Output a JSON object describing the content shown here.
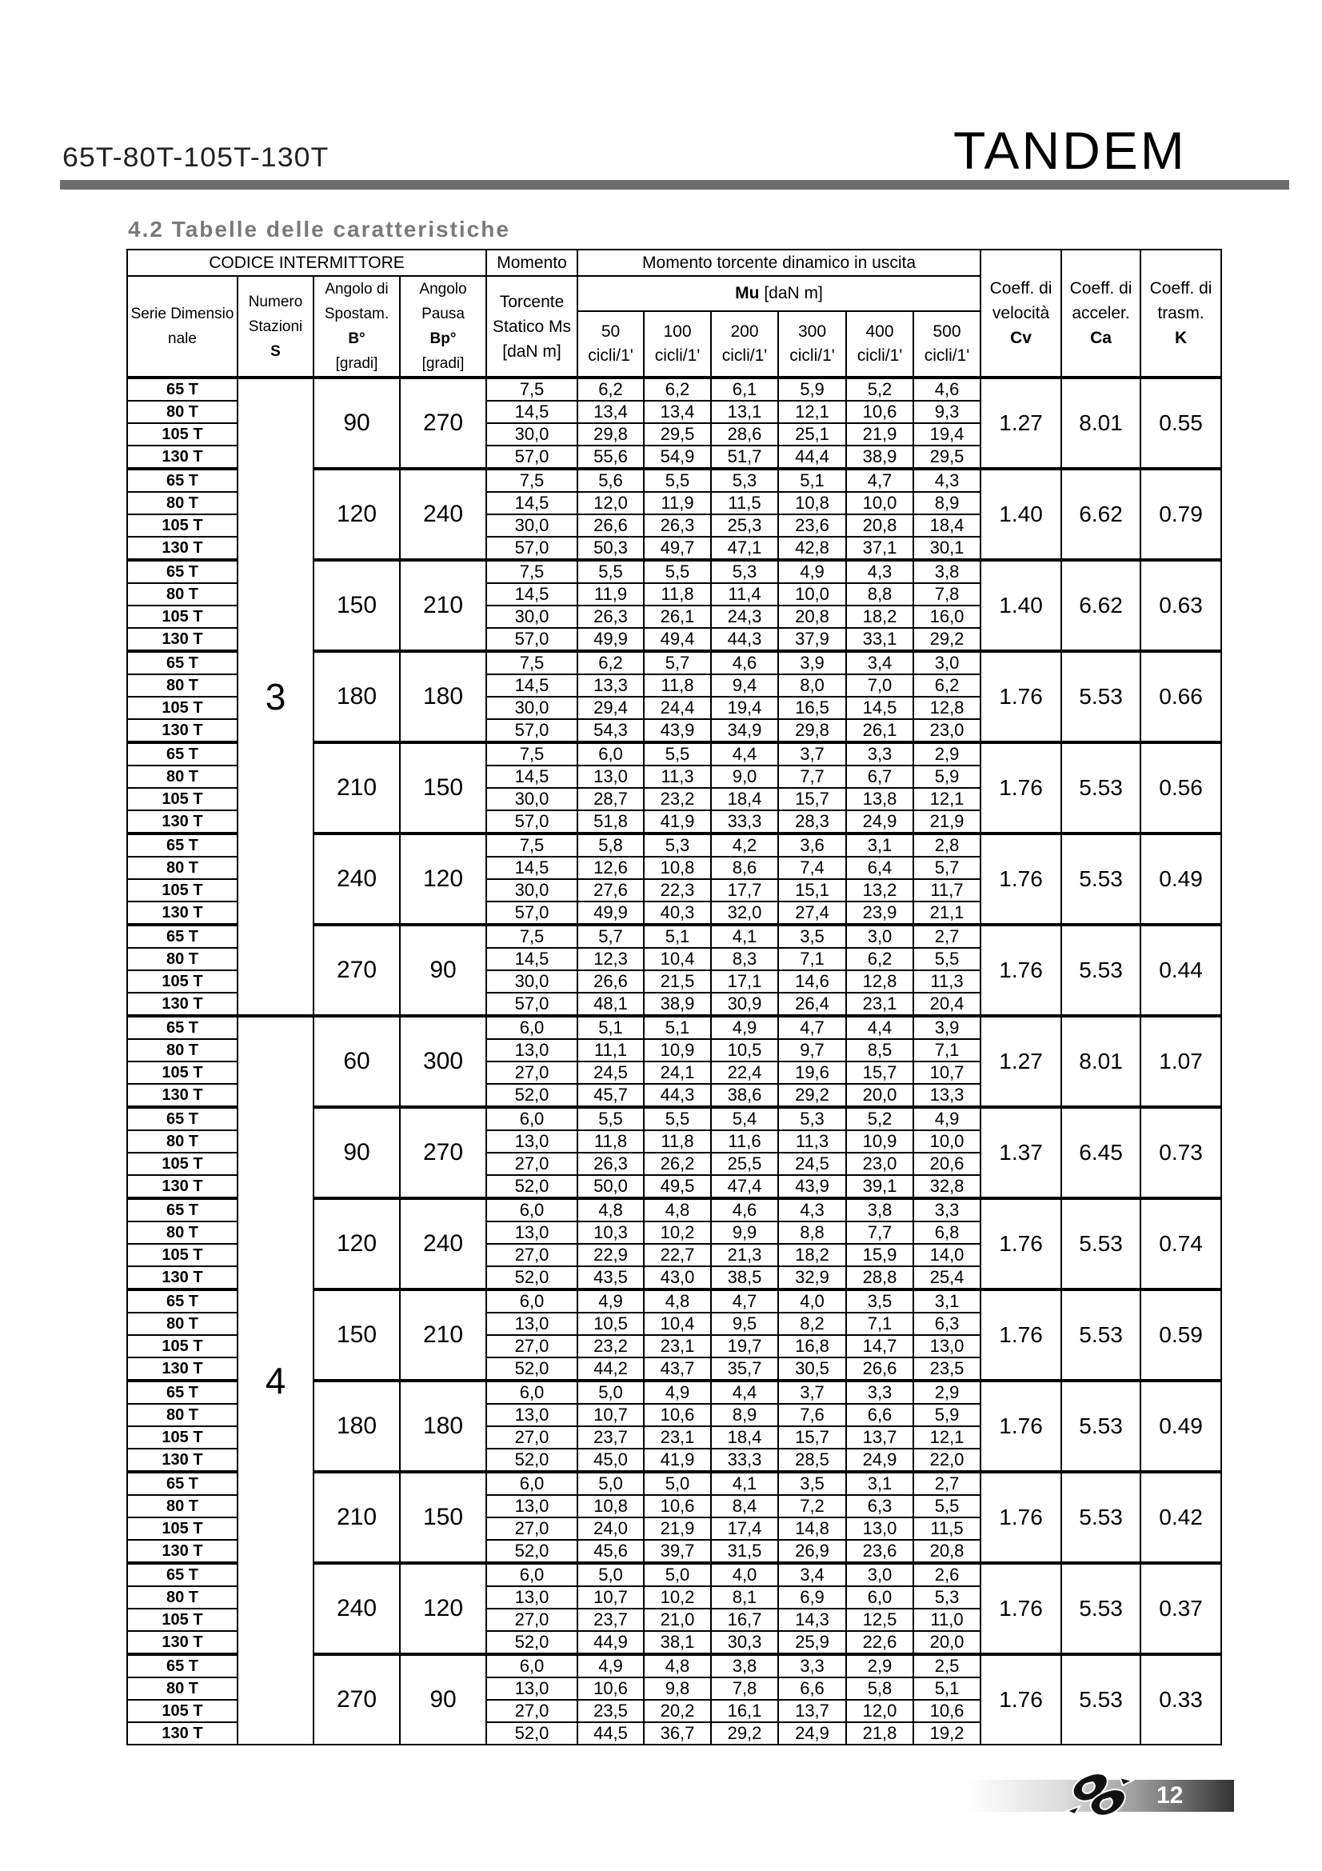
{
  "header": {
    "model": "65T-80T-105T-130T",
    "brand": "TANDEM"
  },
  "section_title": "4.2 Tabelle delle caratteristiche",
  "table": {
    "headers": {
      "codice": "CODICE INTERMITTORE",
      "serie": "Serie Dimensio nale",
      "numero": "Numero Stazioni",
      "numero_sym": "S",
      "angolo_sp": "Angolo di Spostam.",
      "angolo_sp_sym": "B°",
      "angolo_pa": "Angolo Pausa",
      "angolo_pa_sym": "Bp°",
      "unit_gradi": "[gradi]",
      "momento": "Momento",
      "momento2": "Torcente Statico Ms",
      "momento_unit": "[daN m]",
      "dinamico": "Momento torcente dinamico in uscita",
      "mu_sym": "Mu",
      "mu_unit": "[daN m]",
      "cicli": [
        "50",
        "100",
        "200",
        "300",
        "400",
        "500"
      ],
      "cicli_unit": "cicli/1'",
      "cv": "Coeff. di velocità",
      "cv_sym": "Cv",
      "ca": "Coeff. di acceler.",
      "ca_sym": "Ca",
      "k": "Coeff. di trasm.",
      "k_sym": "K"
    },
    "series": [
      "65 T",
      "80 T",
      "105 T",
      "130 T"
    ],
    "stations": [
      {
        "s": "3",
        "ms": [
          "7,5",
          "14,5",
          "30,0",
          "57,0"
        ],
        "groups": [
          {
            "b": "90",
            "bp": "270",
            "cv": "1.27",
            "ca": "8.01",
            "k": "0.55",
            "mu": [
              [
                "6,2",
                "6,2",
                "6,1",
                "5,9",
                "5,2",
                "4,6"
              ],
              [
                "13,4",
                "13,4",
                "13,1",
                "12,1",
                "10,6",
                "9,3"
              ],
              [
                "29,8",
                "29,5",
                "28,6",
                "25,1",
                "21,9",
                "19,4"
              ],
              [
                "55,6",
                "54,9",
                "51,7",
                "44,4",
                "38,9",
                "29,5"
              ]
            ]
          },
          {
            "b": "120",
            "bp": "240",
            "cv": "1.40",
            "ca": "6.62",
            "k": "0.79",
            "mu": [
              [
                "5,6",
                "5,5",
                "5,3",
                "5,1",
                "4,7",
                "4,3"
              ],
              [
                "12,0",
                "11,9",
                "11,5",
                "10,8",
                "10,0",
                "8,9"
              ],
              [
                "26,6",
                "26,3",
                "25,3",
                "23,6",
                "20,8",
                "18,4"
              ],
              [
                "50,3",
                "49,7",
                "47,1",
                "42,8",
                "37,1",
                "30,1"
              ]
            ]
          },
          {
            "b": "150",
            "bp": "210",
            "cv": "1.40",
            "ca": "6.62",
            "k": "0.63",
            "mu": [
              [
                "5,5",
                "5,5",
                "5,3",
                "4,9",
                "4,3",
                "3,8"
              ],
              [
                "11,9",
                "11,8",
                "11,4",
                "10,0",
                "8,8",
                "7,8"
              ],
              [
                "26,3",
                "26,1",
                "24,3",
                "20,8",
                "18,2",
                "16,0"
              ],
              [
                "49,9",
                "49,4",
                "44,3",
                "37,9",
                "33,1",
                "29,2"
              ]
            ]
          },
          {
            "b": "180",
            "bp": "180",
            "cv": "1.76",
            "ca": "5.53",
            "k": "0.66",
            "mu": [
              [
                "6,2",
                "5,7",
                "4,6",
                "3,9",
                "3,4",
                "3,0"
              ],
              [
                "13,3",
                "11,8",
                "9,4",
                "8,0",
                "7,0",
                "6,2"
              ],
              [
                "29,4",
                "24,4",
                "19,4",
                "16,5",
                "14,5",
                "12,8"
              ],
              [
                "54,3",
                "43,9",
                "34,9",
                "29,8",
                "26,1",
                "23,0"
              ]
            ]
          },
          {
            "b": "210",
            "bp": "150",
            "cv": "1.76",
            "ca": "5.53",
            "k": "0.56",
            "mu": [
              [
                "6,0",
                "5,5",
                "4,4",
                "3,7",
                "3,3",
                "2,9"
              ],
              [
                "13,0",
                "11,3",
                "9,0",
                "7,7",
                "6,7",
                "5,9"
              ],
              [
                "28,7",
                "23,2",
                "18,4",
                "15,7",
                "13,8",
                "12,1"
              ],
              [
                "51,8",
                "41,9",
                "33,3",
                "28,3",
                "24,9",
                "21,9"
              ]
            ]
          },
          {
            "b": "240",
            "bp": "120",
            "cv": "1.76",
            "ca": "5.53",
            "k": "0.49",
            "mu": [
              [
                "5,8",
                "5,3",
                "4,2",
                "3,6",
                "3,1",
                "2,8"
              ],
              [
                "12,6",
                "10,8",
                "8,6",
                "7,4",
                "6,4",
                "5,7"
              ],
              [
                "27,6",
                "22,3",
                "17,7",
                "15,1",
                "13,2",
                "11,7"
              ],
              [
                "49,9",
                "40,3",
                "32,0",
                "27,4",
                "23,9",
                "21,1"
              ]
            ]
          },
          {
            "b": "270",
            "bp": "90",
            "cv": "1.76",
            "ca": "5.53",
            "k": "0.44",
            "mu": [
              [
                "5,7",
                "5,1",
                "4,1",
                "3,5",
                "3,0",
                "2,7"
              ],
              [
                "12,3",
                "10,4",
                "8,3",
                "7,1",
                "6,2",
                "5,5"
              ],
              [
                "26,6",
                "21,5",
                "17,1",
                "14,6",
                "12,8",
                "11,3"
              ],
              [
                "48,1",
                "38,9",
                "30,9",
                "26,4",
                "23,1",
                "20,4"
              ]
            ]
          }
        ]
      },
      {
        "s": "4",
        "ms": [
          "6,0",
          "13,0",
          "27,0",
          "52,0"
        ],
        "groups": [
          {
            "b": "60",
            "bp": "300",
            "cv": "1.27",
            "ca": "8.01",
            "k": "1.07",
            "mu": [
              [
                "5,1",
                "5,1",
                "4,9",
                "4,7",
                "4,4",
                "3,9"
              ],
              [
                "11,1",
                "10,9",
                "10,5",
                "9,7",
                "8,5",
                "7,1"
              ],
              [
                "24,5",
                "24,1",
                "22,4",
                "19,6",
                "15,7",
                "10,7"
              ],
              [
                "45,7",
                "44,3",
                "38,6",
                "29,2",
                "20,0",
                "13,3"
              ]
            ]
          },
          {
            "b": "90",
            "bp": "270",
            "cv": "1.37",
            "ca": "6.45",
            "k": "0.73",
            "mu": [
              [
                "5,5",
                "5,5",
                "5,4",
                "5,3",
                "5,2",
                "4,9"
              ],
              [
                "11,8",
                "11,8",
                "11,6",
                "11,3",
                "10,9",
                "10,0"
              ],
              [
                "26,3",
                "26,2",
                "25,5",
                "24,5",
                "23,0",
                "20,6"
              ],
              [
                "50,0",
                "49,5",
                "47,4",
                "43,9",
                "39,1",
                "32,8"
              ]
            ]
          },
          {
            "b": "120",
            "bp": "240",
            "cv": "1.76",
            "ca": "5.53",
            "k": "0.74",
            "mu": [
              [
                "4,8",
                "4,8",
                "4,6",
                "4,3",
                "3,8",
                "3,3"
              ],
              [
                "10,3",
                "10,2",
                "9,9",
                "8,8",
                "7,7",
                "6,8"
              ],
              [
                "22,9",
                "22,7",
                "21,3",
                "18,2",
                "15,9",
                "14,0"
              ],
              [
                "43,5",
                "43,0",
                "38,5",
                "32,9",
                "28,8",
                "25,4"
              ]
            ]
          },
          {
            "b": "150",
            "bp": "210",
            "cv": "1.76",
            "ca": "5.53",
            "k": "0.59",
            "mu": [
              [
                "4,9",
                "4,8",
                "4,7",
                "4,0",
                "3,5",
                "3,1"
              ],
              [
                "10,5",
                "10,4",
                "9,5",
                "8,2",
                "7,1",
                "6,3"
              ],
              [
                "23,2",
                "23,1",
                "19,7",
                "16,8",
                "14,7",
                "13,0"
              ],
              [
                "44,2",
                "43,7",
                "35,7",
                "30,5",
                "26,6",
                "23,5"
              ]
            ]
          },
          {
            "b": "180",
            "bp": "180",
            "cv": "1.76",
            "ca": "5.53",
            "k": "0.49",
            "mu": [
              [
                "5,0",
                "4,9",
                "4,4",
                "3,7",
                "3,3",
                "2,9"
              ],
              [
                "10,7",
                "10,6",
                "8,9",
                "7,6",
                "6,6",
                "5,9"
              ],
              [
                "23,7",
                "23,1",
                "18,4",
                "15,7",
                "13,7",
                "12,1"
              ],
              [
                "45,0",
                "41,9",
                "33,3",
                "28,5",
                "24,9",
                "22,0"
              ]
            ]
          },
          {
            "b": "210",
            "bp": "150",
            "cv": "1.76",
            "ca": "5.53",
            "k": "0.42",
            "mu": [
              [
                "5,0",
                "5,0",
                "4,1",
                "3,5",
                "3,1",
                "2,7"
              ],
              [
                "10,8",
                "10,6",
                "8,4",
                "7,2",
                "6,3",
                "5,5"
              ],
              [
                "24,0",
                "21,9",
                "17,4",
                "14,8",
                "13,0",
                "11,5"
              ],
              [
                "45,6",
                "39,7",
                "31,5",
                "26,9",
                "23,6",
                "20,8"
              ]
            ]
          },
          {
            "b": "240",
            "bp": "120",
            "cv": "1.76",
            "ca": "5.53",
            "k": "0.37",
            "mu": [
              [
                "5,0",
                "5,0",
                "4,0",
                "3,4",
                "3,0",
                "2,6"
              ],
              [
                "10,7",
                "10,2",
                "8,1",
                "6,9",
                "6,0",
                "5,3"
              ],
              [
                "23,7",
                "21,0",
                "16,7",
                "14,3",
                "12,5",
                "11,0"
              ],
              [
                "44,9",
                "38,1",
                "30,3",
                "25,9",
                "22,6",
                "20,0"
              ]
            ]
          },
          {
            "b": "270",
            "bp": "90",
            "cv": "1.76",
            "ca": "5.53",
            "k": "0.33",
            "mu": [
              [
                "4,9",
                "4,8",
                "3,8",
                "3,3",
                "2,9",
                "2,5"
              ],
              [
                "10,6",
                "9,8",
                "7,8",
                "6,6",
                "5,8",
                "5,1"
              ],
              [
                "23,5",
                "20,2",
                "16,1",
                "13,7",
                "12,0",
                "10,6"
              ],
              [
                "44,5",
                "36,7",
                "29,2",
                "24,9",
                "21,8",
                "19,2"
              ]
            ]
          }
        ]
      }
    ]
  },
  "footer": {
    "page_number": "12",
    "logo_icon": "company-logo-icon"
  }
}
